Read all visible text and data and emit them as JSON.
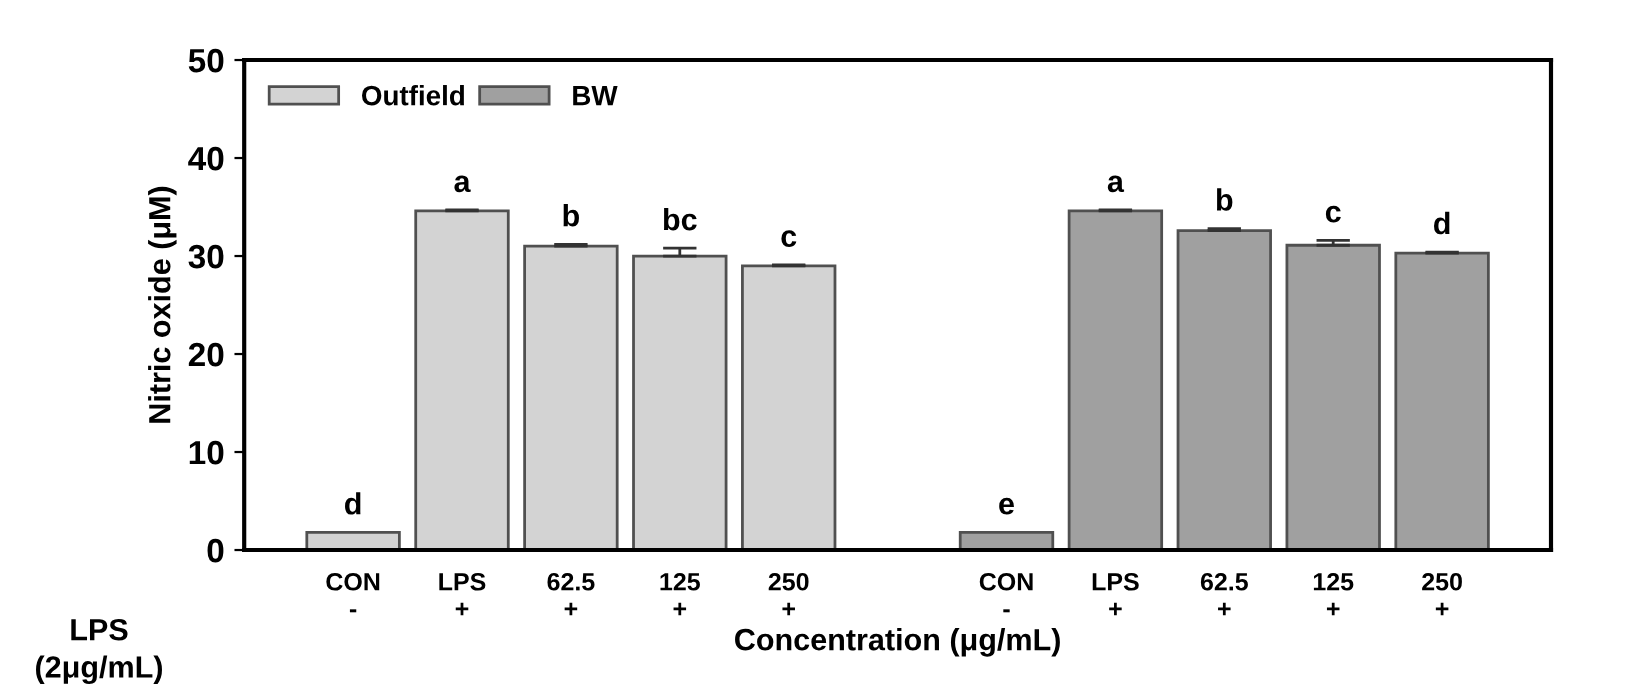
{
  "chart_data": {
    "type": "bar",
    "xlabel": "Concentration (μg/mL)",
    "ylabel": "Nitric oxide (μM)",
    "categories": [
      "CON\n-",
      "LPS\n+",
      "62.5\n+",
      "125\n+",
      "250\n+",
      null,
      "CON\n-",
      "LPS\n+",
      "62.5\n+",
      "125\n+",
      "250\n+"
    ],
    "series": [
      {
        "name": "Outfield",
        "color": "#d3d3d3",
        "values": [
          1.8,
          34.6,
          31.0,
          30.0,
          29.0,
          null,
          null,
          null,
          null,
          null,
          null
        ],
        "errors": [
          null,
          0.1,
          0.2,
          0.8,
          0.1,
          null,
          null,
          null,
          null,
          null,
          null
        ],
        "value_labels": [
          "d",
          "a",
          "b",
          "bc",
          "c",
          null,
          null,
          null,
          null,
          null,
          null
        ]
      },
      {
        "name": "BW",
        "color": "#a0a0a0",
        "values": [
          null,
          null,
          null,
          null,
          null,
          null,
          1.8,
          34.6,
          32.6,
          31.1,
          30.3
        ],
        "errors": [
          null,
          null,
          null,
          null,
          null,
          null,
          null,
          0.1,
          0.2,
          0.5,
          0.1
        ],
        "value_labels": [
          null,
          null,
          null,
          null,
          null,
          null,
          "e",
          "a",
          "b",
          "c",
          "d"
        ]
      }
    ],
    "annotations": [
      "LPS\n(2μg/mL)"
    ],
    "ylim": [
      0,
      50
    ],
    "yticks": [
      0,
      10,
      20,
      30,
      40,
      50
    ],
    "grid": false,
    "legend": "top left"
  }
}
